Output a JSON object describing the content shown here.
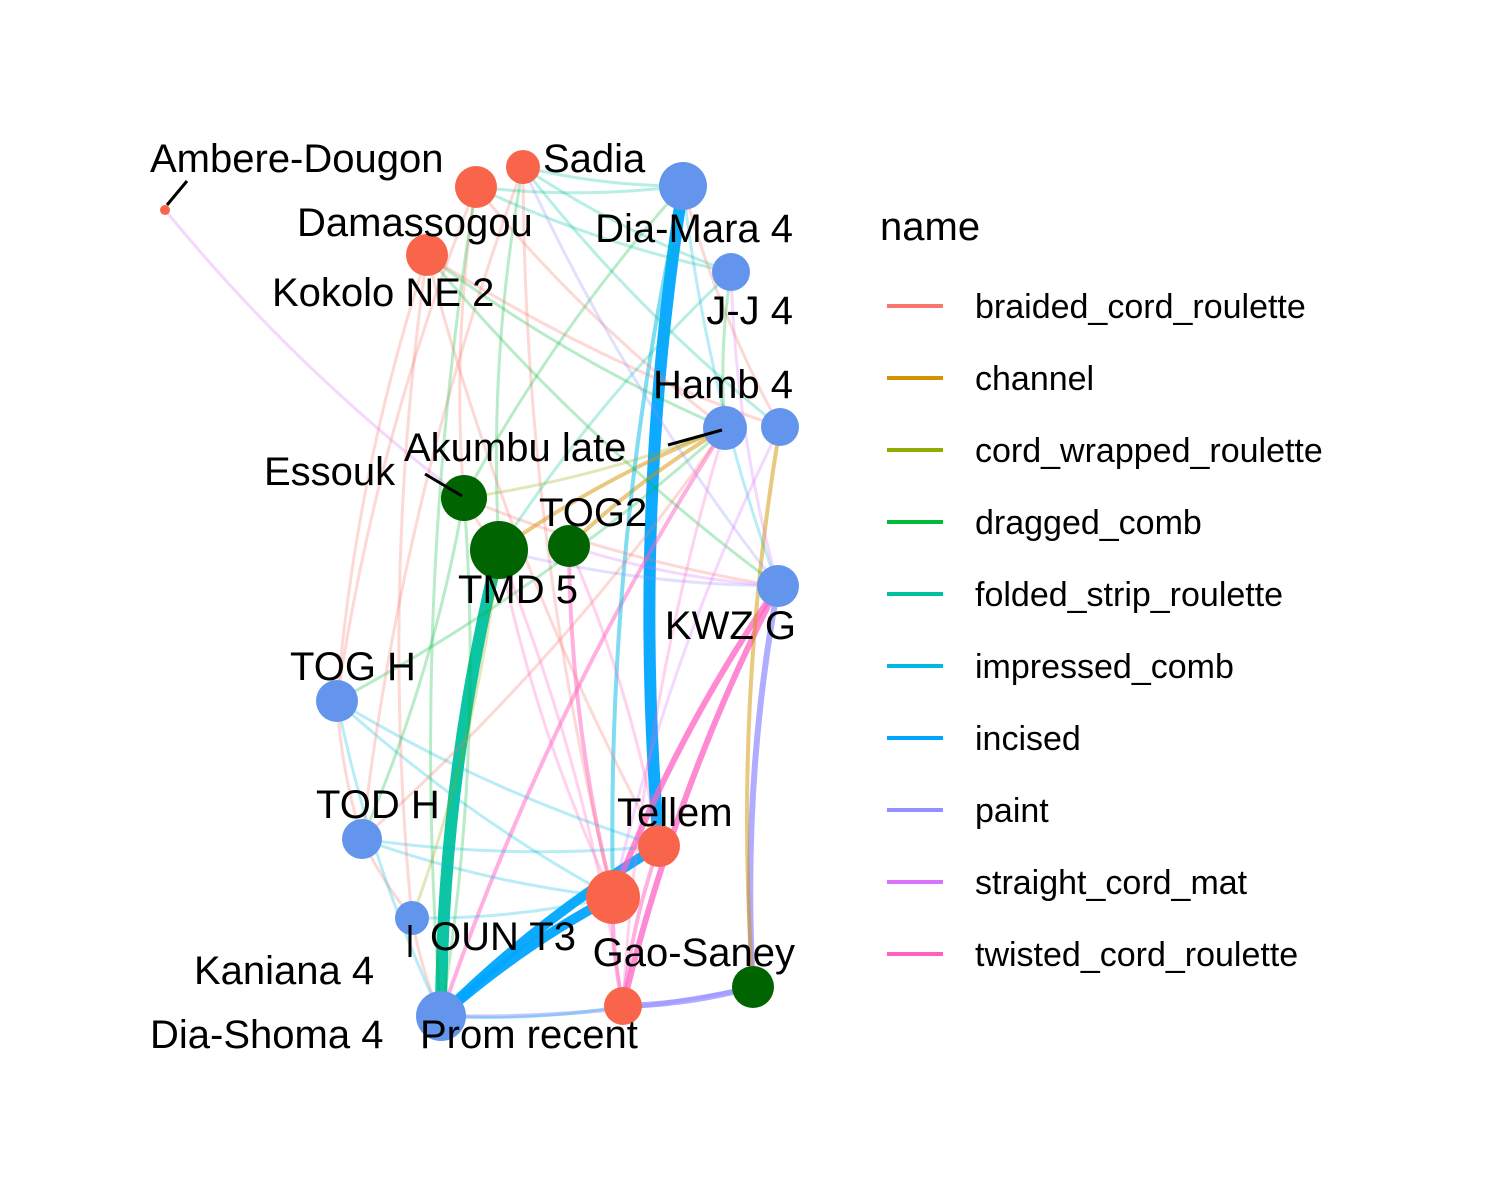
{
  "legend": {
    "title": "name",
    "items": [
      {
        "label": "braided_cord_roulette",
        "color": "#F8766D"
      },
      {
        "label": "channel",
        "color": "#D39200"
      },
      {
        "label": "cord_wrapped_roulette",
        "color": "#93AA00"
      },
      {
        "label": "dragged_comb",
        "color": "#00BA38"
      },
      {
        "label": "folded_strip_roulette",
        "color": "#00C19F"
      },
      {
        "label": "impressed_comb",
        "color": "#00B9E3"
      },
      {
        "label": "incised",
        "color": "#00A5FF"
      },
      {
        "label": "paint",
        "color": "#9590FF"
      },
      {
        "label": "straight_cord_mat",
        "color": "#DB72FB"
      },
      {
        "label": "twisted_cord_roulette",
        "color": "#FF61C3"
      }
    ]
  },
  "node_colors": {
    "red": "#F8654A",
    "blue": "#6495ED",
    "green": "#006400"
  },
  "nodes": [
    {
      "id": "ambere",
      "label": "Ambere-Dougon",
      "group": "red",
      "size": 5
    },
    {
      "id": "sadia",
      "label": "Sadia",
      "group": "red",
      "size": 17
    },
    {
      "id": "damassogou",
      "label": "Damassogou",
      "group": "red",
      "size": 21
    },
    {
      "id": "kokolo",
      "label": "Kokolo NE 2",
      "group": "red",
      "size": 21
    },
    {
      "id": "diamara",
      "label": "Dia-Mara 4",
      "group": "blue",
      "size": 24
    },
    {
      "id": "jj4",
      "label": "J-J 4",
      "group": "blue",
      "size": 19
    },
    {
      "id": "hamb4",
      "label": "Hamb 4",
      "group": "blue",
      "size": 19
    },
    {
      "id": "akumbu",
      "label": "Akumbu late",
      "group": "blue",
      "size": 22
    },
    {
      "id": "essouk",
      "label": "Essouk",
      "group": "green",
      "size": 23
    },
    {
      "id": "tog2",
      "label": "TOG2",
      "group": "green",
      "size": 21
    },
    {
      "id": "tmd5",
      "label": "TMD 5",
      "group": "green",
      "size": 29
    },
    {
      "id": "kwzg",
      "label": "KWZ G",
      "group": "blue",
      "size": 21
    },
    {
      "id": "togh",
      "label": "TOG H",
      "group": "blue",
      "size": 21
    },
    {
      "id": "todh",
      "label": "TOD H",
      "group": "blue",
      "size": 20
    },
    {
      "id": "tellem",
      "label": "Tellem",
      "group": "red",
      "size": 21
    },
    {
      "id": "oun",
      "label": "OUN T3",
      "group": "red",
      "size": 27
    },
    {
      "id": "kaniana",
      "label": "Kaniana 4",
      "group": "blue",
      "size": 17
    },
    {
      "id": "gaosaney",
      "label": "Gao-Saney",
      "group": "green",
      "size": 21
    },
    {
      "id": "prom",
      "label": "Prom recent",
      "group": "red",
      "size": 19
    },
    {
      "id": "diashoma",
      "label": "Dia-Shoma 4",
      "group": "blue",
      "size": 25
    }
  ],
  "edges": [
    {
      "from": "ambere",
      "to": "essouk",
      "type": "straight_cord_mat",
      "weight": 1
    },
    {
      "from": "diamara",
      "to": "tellem",
      "type": "incised",
      "weight": 5
    },
    {
      "from": "tmd5",
      "to": "diashoma",
      "type": "folded_strip_roulette",
      "weight": 5
    },
    {
      "from": "oun",
      "to": "diashoma",
      "type": "incised",
      "weight": 4
    },
    {
      "from": "tellem",
      "to": "diashoma",
      "type": "incised",
      "weight": 4
    },
    {
      "from": "kwzg",
      "to": "oun",
      "type": "twisted_cord_roulette",
      "weight": 3
    },
    {
      "from": "kwzg",
      "to": "prom",
      "type": "twisted_cord_roulette",
      "weight": 3
    },
    {
      "from": "kwzg",
      "to": "gaosaney",
      "type": "paint",
      "weight": 3
    },
    {
      "from": "hamb4",
      "to": "gaosaney",
      "type": "channel",
      "weight": 2
    },
    {
      "from": "prom",
      "to": "gaosaney",
      "type": "paint",
      "weight": 3
    },
    {
      "from": "diashoma",
      "to": "gaosaney",
      "type": "paint",
      "weight": 2
    },
    {
      "from": "akumbu",
      "to": "tmd5",
      "type": "channel",
      "weight": 2
    },
    {
      "from": "akumbu",
      "to": "tog2",
      "type": "channel",
      "weight": 2
    },
    {
      "from": "akumbu",
      "to": "diashoma",
      "type": "twisted_cord_roulette",
      "weight": 2
    },
    {
      "from": "tellem",
      "to": "prom",
      "type": "twisted_cord_roulette",
      "weight": 2
    },
    {
      "from": "oun",
      "to": "prom",
      "type": "twisted_cord_roulette",
      "weight": 2
    },
    {
      "from": "tog2",
      "to": "oun",
      "type": "twisted_cord_roulette",
      "weight": 2
    },
    {
      "from": "tmd5",
      "to": "oun",
      "type": "twisted_cord_roulette",
      "weight": 1
    },
    {
      "from": "togh",
      "to": "oun",
      "type": "impressed_comb",
      "weight": 1
    },
    {
      "from": "todh",
      "to": "oun",
      "type": "impressed_comb",
      "weight": 1
    },
    {
      "from": "todh",
      "to": "tellem",
      "type": "impressed_comb",
      "weight": 1
    },
    {
      "from": "togh",
      "to": "tellem",
      "type": "impressed_comb",
      "weight": 1
    },
    {
      "from": "diamara",
      "to": "oun",
      "type": "impressed_comb",
      "weight": 2
    },
    {
      "from": "kaniana",
      "to": "oun",
      "type": "impressed_comb",
      "weight": 1
    },
    {
      "from": "sadia",
      "to": "diamara",
      "type": "folded_strip_roulette",
      "weight": 1
    },
    {
      "from": "damassogou",
      "to": "diamara",
      "type": "folded_strip_roulette",
      "weight": 1
    },
    {
      "from": "kokolo",
      "to": "hamb4",
      "type": "braided_cord_roulette",
      "weight": 1
    },
    {
      "from": "kokolo",
      "to": "akumbu",
      "type": "dragged_comb",
      "weight": 1
    },
    {
      "from": "damassogou",
      "to": "essouk",
      "type": "braided_cord_roulette",
      "weight": 1
    },
    {
      "from": "sadia",
      "to": "tmd5",
      "type": "dragged_comb",
      "weight": 1
    },
    {
      "from": "kokolo",
      "to": "togh",
      "type": "braided_cord_roulette",
      "weight": 1
    },
    {
      "from": "damassogou",
      "to": "togh",
      "type": "braided_cord_roulette",
      "weight": 1
    },
    {
      "from": "sadia",
      "to": "todh",
      "type": "braided_cord_roulette",
      "weight": 1
    },
    {
      "from": "kokolo",
      "to": "kaniana",
      "type": "braided_cord_roulette",
      "weight": 1
    },
    {
      "from": "damassogou",
      "to": "diashoma",
      "type": "dragged_comb",
      "weight": 1
    },
    {
      "from": "kokolo",
      "to": "tellem",
      "type": "braided_cord_roulette",
      "weight": 1
    },
    {
      "from": "sadia",
      "to": "oun",
      "type": "braided_cord_roulette",
      "weight": 1
    },
    {
      "from": "damassogou",
      "to": "jj4",
      "type": "folded_strip_roulette",
      "weight": 1
    },
    {
      "from": "sadia",
      "to": "hamb4",
      "type": "folded_strip_roulette",
      "weight": 1
    },
    {
      "from": "kokolo",
      "to": "kwzg",
      "type": "dragged_comb",
      "weight": 1
    },
    {
      "from": "damassogou",
      "to": "akumbu",
      "type": "braided_cord_roulette",
      "weight": 1
    },
    {
      "from": "sadia",
      "to": "jj4",
      "type": "folded_strip_roulette",
      "weight": 1
    },
    {
      "from": "diamara",
      "to": "essouk",
      "type": "dragged_comb",
      "weight": 1
    },
    {
      "from": "jj4",
      "to": "tmd5",
      "type": "folded_strip_roulette",
      "weight": 1
    },
    {
      "from": "essouk",
      "to": "akumbu",
      "type": "cord_wrapped_roulette",
      "weight": 1
    },
    {
      "from": "essouk",
      "to": "kwzg",
      "type": "braided_cord_roulette",
      "weight": 1
    },
    {
      "from": "tmd5",
      "to": "kwzg",
      "type": "paint",
      "weight": 1
    },
    {
      "from": "tog2",
      "to": "kwzg",
      "type": "straight_cord_mat",
      "weight": 1
    },
    {
      "from": "togh",
      "to": "akumbu",
      "type": "dragged_comb",
      "weight": 1
    },
    {
      "from": "todh",
      "to": "akumbu",
      "type": "braided_cord_roulette",
      "weight": 1
    },
    {
      "from": "todh",
      "to": "essouk",
      "type": "dragged_comb",
      "weight": 1
    },
    {
      "from": "kaniana",
      "to": "tmd5",
      "type": "cord_wrapped_roulette",
      "weight": 1
    },
    {
      "from": "diashoma",
      "to": "essouk",
      "type": "dragged_comb",
      "weight": 1
    },
    {
      "from": "prom",
      "to": "tmd5",
      "type": "twisted_cord_roulette",
      "weight": 1
    },
    {
      "from": "tellem",
      "to": "tog2",
      "type": "twisted_cord_roulette",
      "weight": 1
    },
    {
      "from": "diamara",
      "to": "kwzg",
      "type": "impressed_comb",
      "weight": 1
    },
    {
      "from": "jj4",
      "to": "kwzg",
      "type": "straight_cord_mat",
      "weight": 1
    },
    {
      "from": "hamb4",
      "to": "oun",
      "type": "straight_cord_mat",
      "weight": 1
    },
    {
      "from": "akumbu",
      "to": "prom",
      "type": "twisted_cord_roulette",
      "weight": 1
    },
    {
      "from": "essouk",
      "to": "tmd5",
      "type": "braided_cord_roulette",
      "weight": 1
    },
    {
      "from": "togh",
      "to": "todh",
      "type": "braided_cord_roulette",
      "weight": 1
    },
    {
      "from": "todh",
      "to": "kaniana",
      "type": "braided_cord_roulette",
      "weight": 1
    },
    {
      "from": "kaniana",
      "to": "diashoma",
      "type": "braided_cord_roulette",
      "weight": 1
    },
    {
      "from": "togh",
      "to": "diashoma",
      "type": "impressed_comb",
      "weight": 1
    },
    {
      "from": "diashoma",
      "to": "prom",
      "type": "impressed_comb",
      "weight": 1
    },
    {
      "from": "diamara",
      "to": "hamb4",
      "type": "braided_cord_roulette",
      "weight": 1
    },
    {
      "from": "jj4",
      "to": "akumbu",
      "type": "dragged_comb",
      "weight": 1
    },
    {
      "from": "sadia",
      "to": "kwzg",
      "type": "paint",
      "weight": 1
    }
  ]
}
